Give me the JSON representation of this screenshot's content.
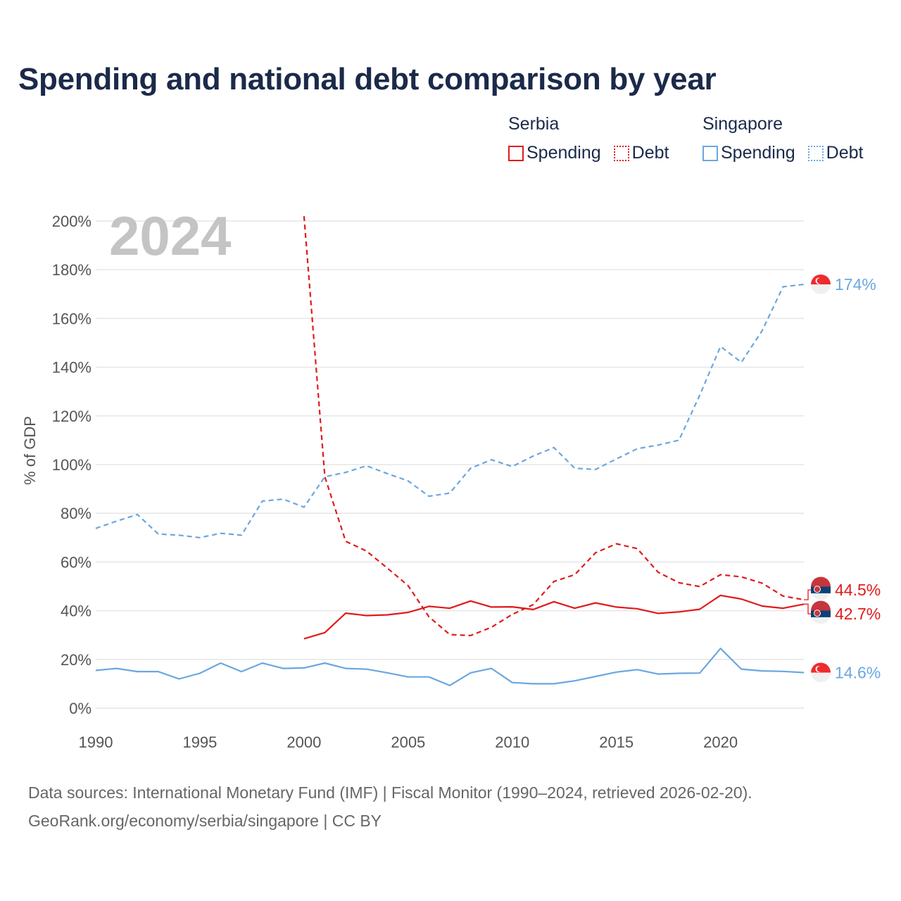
{
  "title": "Spending and national debt comparison by year",
  "legend": {
    "groups": [
      {
        "name": "Serbia",
        "items": [
          "Spending",
          "Debt"
        ]
      },
      {
        "name": "Singapore",
        "items": [
          "Spending",
          "Debt"
        ]
      }
    ]
  },
  "colors": {
    "serbia": "#e01b1b",
    "singapore": "#6aa7e0",
    "title": "#1b2a4a"
  },
  "footer": {
    "line1": "Data sources: International Monetary Fund (IMF) | Fiscal Monitor (1990–2024, retrieved 2026-02-20).",
    "line2": "GeoRank.org/economy/serbia/singapore | CC BY"
  },
  "chart_data": {
    "type": "line",
    "year_label": "2024",
    "ylabel": "% of GDP",
    "xlim": [
      1990,
      2024
    ],
    "ylim": [
      0,
      200
    ],
    "x_ticks": [
      1990,
      1995,
      2000,
      2005,
      2010,
      2015,
      2020
    ],
    "y_ticks": [
      0,
      20,
      40,
      60,
      80,
      100,
      120,
      140,
      160,
      180,
      200
    ],
    "y_tick_labels": [
      "0%",
      "20%",
      "40%",
      "60%",
      "80%",
      "100%",
      "120%",
      "140%",
      "160%",
      "180%",
      "200%"
    ],
    "series": [
      {
        "name": "Serbia Spending",
        "country": "serbia",
        "style": "solid",
        "x": [
          2000,
          2001,
          2002,
          2003,
          2004,
          2005,
          2006,
          2007,
          2008,
          2009,
          2010,
          2011,
          2012,
          2013,
          2014,
          2015,
          2016,
          2017,
          2018,
          2019,
          2020,
          2021,
          2022,
          2023,
          2024
        ],
        "values": [
          28.5,
          31,
          39,
          38,
          38.3,
          39.3,
          41.8,
          41,
          44,
          41.5,
          41.6,
          40.5,
          43.7,
          41,
          43.2,
          41.5,
          40.8,
          38.9,
          39.5,
          40.6,
          46.3,
          44.8,
          41.9,
          41,
          42.7
        ],
        "end_label": "42.7%"
      },
      {
        "name": "Serbia Debt",
        "country": "serbia",
        "style": "dashed",
        "x": [
          2000,
          2001,
          2002,
          2003,
          2004,
          2005,
          2006,
          2007,
          2008,
          2009,
          2010,
          2011,
          2012,
          2013,
          2014,
          2015,
          2016,
          2017,
          2018,
          2019,
          2020,
          2021,
          2022,
          2023,
          2024
        ],
        "values": [
          202,
          95,
          68.5,
          64.5,
          57.5,
          50.3,
          37.5,
          30.2,
          29.8,
          33.2,
          38.5,
          42.5,
          52,
          54.8,
          63.8,
          67.5,
          65.5,
          55.8,
          51.5,
          49.9,
          54.8,
          53.9,
          51.3,
          46,
          44.5
        ],
        "end_label": "44.5%"
      },
      {
        "name": "Singapore Spending",
        "country": "singapore",
        "style": "solid",
        "x": [
          1990,
          1991,
          1992,
          1993,
          1994,
          1995,
          1996,
          1997,
          1998,
          1999,
          2000,
          2001,
          2002,
          2003,
          2004,
          2005,
          2006,
          2007,
          2008,
          2009,
          2010,
          2011,
          2012,
          2013,
          2014,
          2015,
          2016,
          2017,
          2018,
          2019,
          2020,
          2021,
          2022,
          2023,
          2024
        ],
        "values": [
          15.5,
          16.3,
          15,
          15,
          12,
          14.3,
          18.5,
          15,
          18.5,
          16.3,
          16.5,
          18.5,
          16.3,
          16,
          14.5,
          12.8,
          12.8,
          9.3,
          14.5,
          16.3,
          10.5,
          10,
          10,
          11.2,
          13,
          14.8,
          15.8,
          14,
          14.3,
          14.4,
          24.5,
          16,
          15.3,
          15.1,
          14.6
        ],
        "end_label": "14.6%"
      },
      {
        "name": "Singapore Debt",
        "country": "singapore",
        "style": "dashed",
        "x": [
          1990,
          1991,
          1992,
          1993,
          1994,
          1995,
          1996,
          1997,
          1998,
          1999,
          2000,
          2001,
          2002,
          2003,
          2004,
          2005,
          2006,
          2007,
          2008,
          2009,
          2010,
          2011,
          2012,
          2013,
          2014,
          2015,
          2016,
          2017,
          2018,
          2019,
          2020,
          2021,
          2022,
          2023,
          2024
        ],
        "values": [
          73.8,
          76.8,
          79.5,
          71.5,
          71,
          70,
          71.8,
          71,
          85,
          85.8,
          82.5,
          95,
          96.8,
          99.5,
          96.3,
          93.3,
          87,
          88.3,
          98.5,
          102,
          99.2,
          103.5,
          107,
          98.5,
          98,
          102.3,
          106.5,
          108,
          110,
          128.5,
          148.5,
          142,
          155,
          173,
          174
        ],
        "end_label": "174%"
      }
    ]
  }
}
